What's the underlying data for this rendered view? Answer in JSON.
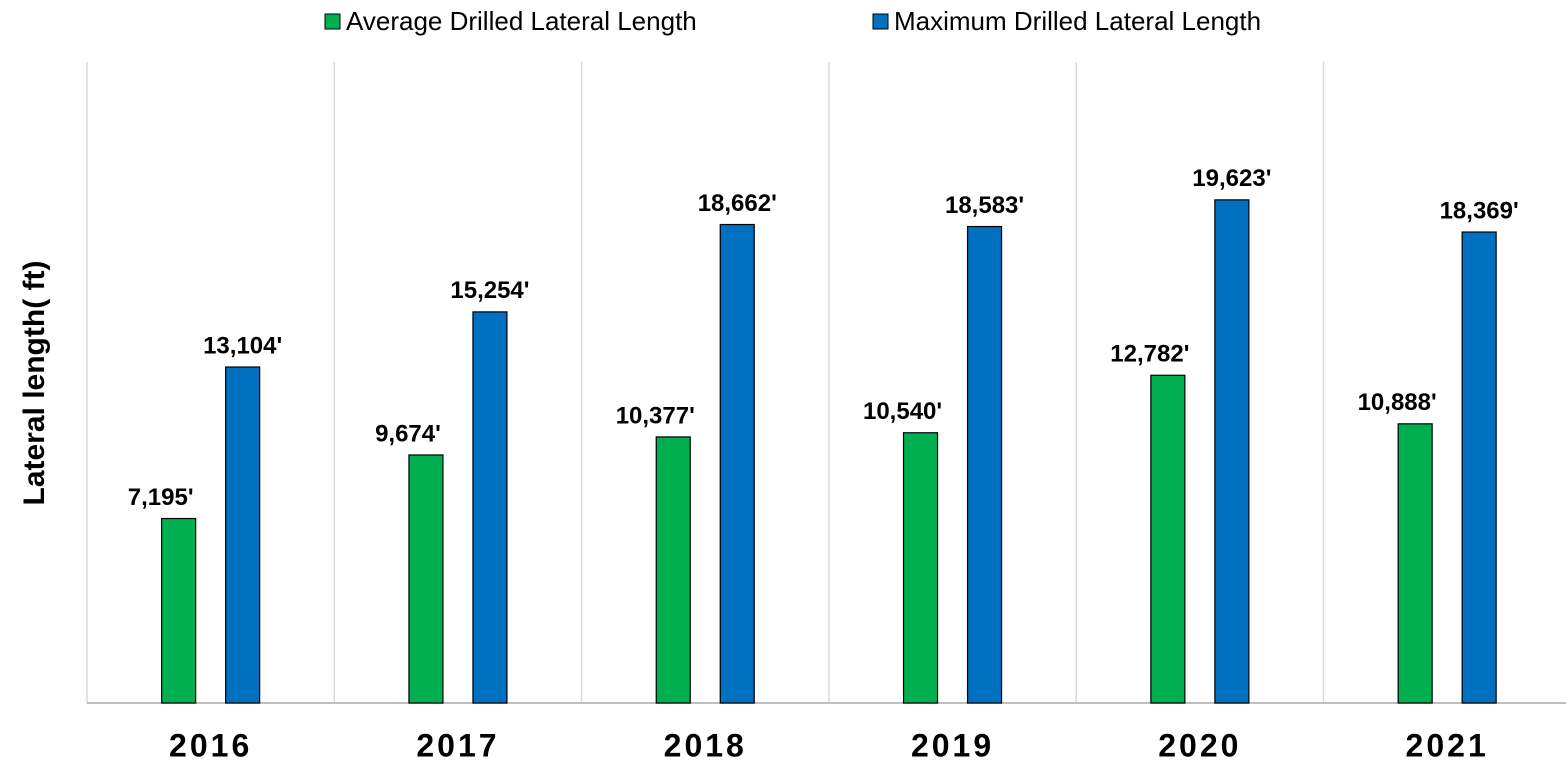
{
  "chart_data": {
    "type": "bar",
    "y_axis_label": "Lateral length( ft)",
    "categories": [
      "2016",
      "2017",
      "2018",
      "2019",
      "2020",
      "2021"
    ],
    "series": [
      {
        "name": "Average Drilled Lateral Length",
        "color": "#00b050",
        "values": [
          7195,
          9674,
          10377,
          10540,
          12782,
          10888
        ],
        "value_labels": [
          "7,195'",
          "9,674'",
          "10,377'",
          "10,540'",
          "12,782'",
          "10,888'"
        ]
      },
      {
        "name": "Maximum Drilled Lateral Length",
        "color": "#0070c0",
        "values": [
          13104,
          15254,
          18662,
          18583,
          19623,
          18369
        ],
        "value_labels": [
          "13,104'",
          "15,254'",
          "18,662'",
          "18,583'",
          "19,623'",
          "18,369'"
        ]
      }
    ],
    "ylim": [
      0,
      25000
    ],
    "legend": "top"
  }
}
